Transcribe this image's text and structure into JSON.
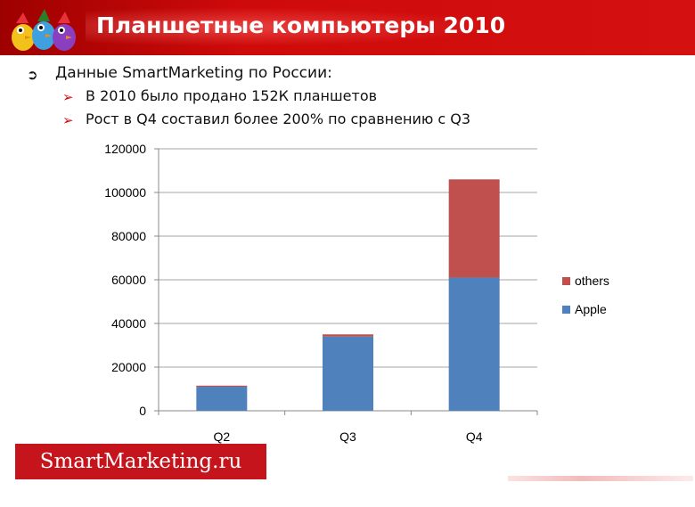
{
  "header": {
    "title": "Планшетные компьютеры 2010"
  },
  "bullets": {
    "main": "Данные SmartMarketing по России:",
    "sub": [
      "В 2010 было продано 152К планшетов",
      "Рост в Q4 составил более 200% по сравнению с Q3"
    ]
  },
  "chart_data": {
    "type": "bar",
    "stacked": true,
    "categories": [
      "Q2",
      "Q3",
      "Q4"
    ],
    "series": [
      {
        "name": "Apple",
        "values": [
          11000,
          34000,
          61000
        ],
        "color": "#4f81bd"
      },
      {
        "name": "others",
        "values": [
          500,
          1000,
          45000
        ],
        "color": "#c0504d"
      }
    ],
    "ylim": [
      0,
      120000
    ],
    "yticks": [
      "0",
      "20000",
      "40000",
      "60000",
      "80000",
      "100000",
      "120000"
    ],
    "grid": true,
    "legend": "right"
  },
  "footer": {
    "brand": "SmartMarketing.ru",
    "brand_color": "#c5141c"
  },
  "colors": {
    "title_bar": "#cf0a0a",
    "accent": "#d01010"
  }
}
